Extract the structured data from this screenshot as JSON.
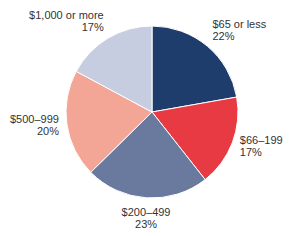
{
  "chart_data": {
    "type": "pie",
    "categories": [
      "$65 or less",
      "$66–199",
      "$200–499",
      "$500–999",
      "$1,000 or more"
    ],
    "values": [
      22,
      17,
      23,
      20,
      17
    ],
    "value_labels": [
      "22%",
      "17%",
      "23%",
      "20%",
      "17%"
    ],
    "colors": [
      "#1f3d6c",
      "#e83a43",
      "#6a7a9f",
      "#f4a696",
      "#c6cde0"
    ],
    "data_labels": true
  }
}
